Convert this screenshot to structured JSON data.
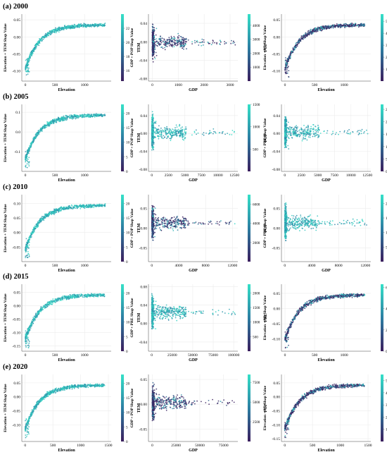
{
  "figure": {
    "rows": [
      {
        "label": "(a) 2000"
      },
      {
        "label": "(b) 2005"
      },
      {
        "label": "(c) 2010"
      },
      {
        "label": "(d) 2015"
      },
      {
        "label": "(e) 2020"
      }
    ]
  },
  "colors": {
    "cmap_low": "#3b1f5e",
    "cmap_mid": "#2c7fa3",
    "cmap_high": "#35e0c8",
    "teal_light": "#a9ead0",
    "teal_mid": "#5fd3b8",
    "purple_dark": "#2e1f4f"
  },
  "chart_data": [
    {
      "type": "scatter",
      "row": 0,
      "col": 0,
      "shape": "elevation",
      "cmapStyle": "teal",
      "xlabel": "Elevation",
      "ylabel": "Elevation + TEM Shap Value",
      "xlim": [
        -60,
        1450
      ],
      "ylim": [
        -0.13,
        0.067
      ],
      "xticks": [
        0,
        500,
        1000
      ],
      "yticks": [
        -0.1,
        -0.05,
        0.0,
        0.05
      ],
      "colorbar": {
        "label": "TEM",
        "range": [
          14.5,
          24
        ],
        "ticks": [
          16,
          18,
          20,
          22
        ]
      }
    },
    {
      "type": "scatter",
      "row": 0,
      "col": 1,
      "shape": "gdp",
      "cmapStyle": "purple",
      "xlabel": "GDP",
      "ylabel": "GDP + POP Shap Value",
      "xlim": [
        -150,
        3300
      ],
      "ylim": [
        -0.085,
        0.06
      ],
      "xticks": [
        0,
        1000,
        2000,
        3000
      ],
      "yticks": [
        -0.08,
        -0.04,
        0.0,
        0.04
      ],
      "colorbar": {
        "label": "POP",
        "range": [
          0,
          4800
        ],
        "ticks": [
          1000,
          2000,
          3000,
          4000
        ]
      }
    },
    {
      "type": "scatter",
      "row": 0,
      "col": 2,
      "shape": "elevation",
      "cmapStyle": "purple",
      "xlabel": "Elevation",
      "ylabel": "Elevation + NL Shap Value",
      "xlim": [
        -60,
        1450
      ],
      "ylim": [
        -0.13,
        0.067
      ],
      "xticks": [
        0,
        500,
        1000
      ],
      "yticks": [
        -0.1,
        -0.05,
        0.0,
        0.05
      ],
      "colorbar": {
        "label": "NL",
        "range": [
          0,
          5600
        ],
        "ticks": [
          1000,
          2000,
          3000,
          4000,
          5000
        ]
      }
    },
    {
      "type": "scatter",
      "row": 1,
      "col": 0,
      "shape": "elevation",
      "cmapStyle": "teal",
      "xlabel": "Elevation",
      "ylabel": "Elevation + TEM Shap Value",
      "xlim": [
        -60,
        1450
      ],
      "ylim": [
        -0.2,
        0.14
      ],
      "xticks": [
        0,
        500,
        1000
      ],
      "yticks": [
        -0.1,
        0.0,
        0.1
      ],
      "colorbar": {
        "label": "TEM",
        "range": [
          0,
          23
        ],
        "ticks": [
          0,
          5,
          10,
          15,
          20
        ]
      }
    },
    {
      "type": "scatter",
      "row": 1,
      "col": 1,
      "shape": "gdp",
      "cmapStyle": "teal",
      "xlabel": "GDP",
      "ylabel": "GDP + POP Shap Value",
      "xlim": [
        -500,
        13000
      ],
      "ylim": [
        -0.085,
        0.065
      ],
      "xticks": [
        0,
        2500,
        5000,
        7500,
        10000,
        12500
      ],
      "yticks": [
        -0.08,
        -0.04,
        0.0,
        0.04
      ],
      "colorbar": {
        "label": "POP",
        "range": [
          0,
          1500
        ],
        "ticks": [
          500,
          1000,
          1500
        ]
      }
    },
    {
      "type": "scatter",
      "row": 1,
      "col": 2,
      "shape": "gdp",
      "cmapStyle": "teal",
      "xlabel": "GDP",
      "ylabel": "GDP + PRE Shap Value",
      "xlim": [
        -500,
        13000
      ],
      "ylim": [
        -0.085,
        0.065
      ],
      "xticks": [
        0,
        2500,
        5000,
        7500,
        10000,
        12500
      ],
      "yticks": [
        -0.08,
        -0.04,
        0.0,
        0.04
      ],
      "colorbar": {
        "label": "PRE",
        "range": [
          0,
          2700
        ],
        "ticks": [
          0,
          500,
          1000,
          1500,
          2000,
          2500
        ]
      }
    },
    {
      "type": "scatter",
      "row": 2,
      "col": 0,
      "shape": "elevation",
      "cmapStyle": "teal",
      "xlabel": "Elevation",
      "ylabel": "Elevation + TEM Shap Value",
      "xlim": [
        -60,
        1450
      ],
      "ylim": [
        -0.1,
        0.13
      ],
      "xticks": [
        0,
        500,
        1000
      ],
      "yticks": [
        -0.05,
        0.0,
        0.05,
        0.1
      ],
      "colorbar": {
        "label": "TEM",
        "range": [
          0,
          23
        ],
        "ticks": [
          0,
          5,
          10,
          15,
          20
        ]
      }
    },
    {
      "type": "scatter",
      "row": 2,
      "col": 1,
      "shape": "gdp",
      "cmapStyle": "purple",
      "xlabel": "GDP",
      "ylabel": "GDP + POP Shap Value",
      "xlim": [
        -500,
        12800
      ],
      "ylim": [
        -0.085,
        0.085
      ],
      "xticks": [
        0,
        4000,
        8000,
        12000
      ],
      "yticks": [
        -0.05,
        0.0,
        0.05
      ],
      "colorbar": {
        "label": "POP",
        "range": [
          0,
          7000
        ],
        "ticks": [
          2000,
          4000,
          6000
        ]
      }
    },
    {
      "type": "scatter",
      "row": 2,
      "col": 2,
      "shape": "gdp",
      "cmapStyle": "teal",
      "xlabel": "GDP",
      "ylabel": "GDP + PRE Shap Value",
      "xlim": [
        -500,
        12800
      ],
      "ylim": [
        -0.085,
        0.085
      ],
      "xticks": [
        0,
        4000,
        8000,
        12000
      ],
      "yticks": [
        -0.05,
        0.0,
        0.05
      ],
      "colorbar": {
        "label": "PRE",
        "range": [
          0,
          2300
        ],
        "ticks": [
          500,
          1000,
          1500,
          2000
        ]
      }
    },
    {
      "type": "scatter",
      "row": 3,
      "col": 0,
      "shape": "elevation",
      "cmapStyle": "teal",
      "xlabel": "Elevation",
      "ylabel": "Elevation + TEM Shap Value",
      "xlim": [
        -60,
        1450
      ],
      "ylim": [
        -0.17,
        0.08
      ],
      "xticks": [
        0,
        500,
        1000
      ],
      "yticks": [
        -0.15,
        -0.1,
        -0.05,
        0.0,
        0.05
      ],
      "colorbar": {
        "label": "TEM",
        "range": [
          0,
          23
        ],
        "ticks": [
          0,
          5,
          10,
          15,
          20
        ]
      }
    },
    {
      "type": "scatter",
      "row": 3,
      "col": 1,
      "shape": "gdp",
      "cmapStyle": "teal",
      "xlabel": "GDP",
      "ylabel": "GDP + PRE Shap Value",
      "xlim": [
        -4000,
        105000
      ],
      "ylim": [
        -0.06,
        0.085
      ],
      "xticks": [
        0,
        25000,
        50000,
        75000,
        100000
      ],
      "yticks": [
        -0.04,
        0.0,
        0.04,
        0.08
      ],
      "colorbar": {
        "label": "PRE",
        "range": [
          0,
          2300
        ],
        "ticks": [
          500,
          1000,
          1500,
          2000
        ]
      }
    },
    {
      "type": "scatter",
      "row": 3,
      "col": 2,
      "shape": "elevation",
      "cmapStyle": "purple",
      "xlabel": "Elevation",
      "ylabel": "Elevation + NL Shap Value",
      "xlim": [
        -60,
        1450
      ],
      "ylim": [
        -0.14,
        0.08
      ],
      "xticks": [
        0,
        500,
        1000
      ],
      "yticks": [
        -0.1,
        -0.05,
        0.0,
        0.05
      ],
      "colorbar": {
        "label": "NL",
        "range": [
          0,
          6300
        ],
        "ticks": [
          0,
          2000,
          4000,
          6000
        ]
      }
    },
    {
      "type": "scatter",
      "row": 4,
      "col": 0,
      "shape": "elevation",
      "cmapStyle": "teal",
      "xlabel": "Elevation",
      "ylabel": "Elevation + TEM Shap Value",
      "xlim": [
        -60,
        1550
      ],
      "ylim": [
        -0.16,
        0.08
      ],
      "xticks": [
        0,
        500,
        1000,
        1500
      ],
      "yticks": [
        -0.1,
        -0.05,
        0.0,
        0.05
      ],
      "colorbar": {
        "label": "TEM",
        "range": [
          0,
          23
        ],
        "ticks": [
          0,
          5,
          10,
          15,
          20
        ]
      }
    },
    {
      "type": "scatter",
      "row": 4,
      "col": 1,
      "shape": "gdp",
      "cmapStyle": "purple",
      "xlabel": "GDP",
      "ylabel": "GDP + POP Shap Value",
      "xlim": [
        -4000,
        90000
      ],
      "ylim": [
        -0.075,
        0.06
      ],
      "xticks": [
        0,
        25000,
        50000,
        75000
      ],
      "yticks": [
        -0.05,
        0.0,
        0.05
      ],
      "colorbar": {
        "label": "POP",
        "range": [
          0,
          8500
        ],
        "ticks": [
          2500,
          5000,
          7500
        ]
      }
    },
    {
      "type": "scatter",
      "row": 4,
      "col": 2,
      "shape": "elevation",
      "cmapStyle": "purple",
      "xlabel": "Elevation",
      "ylabel": "Elevation + NL Shap Value",
      "xlim": [
        -60,
        1550
      ],
      "ylim": [
        -0.16,
        0.08
      ],
      "xticks": [
        0,
        500,
        1000,
        1500
      ],
      "yticks": [
        -0.15,
        -0.1,
        -0.05,
        0.0,
        0.05
      ],
      "colorbar": {
        "label": "NL",
        "range": [
          0,
          5500
        ],
        "ticks": [
          1000,
          2000,
          3000,
          4000,
          5000
        ]
      }
    }
  ]
}
